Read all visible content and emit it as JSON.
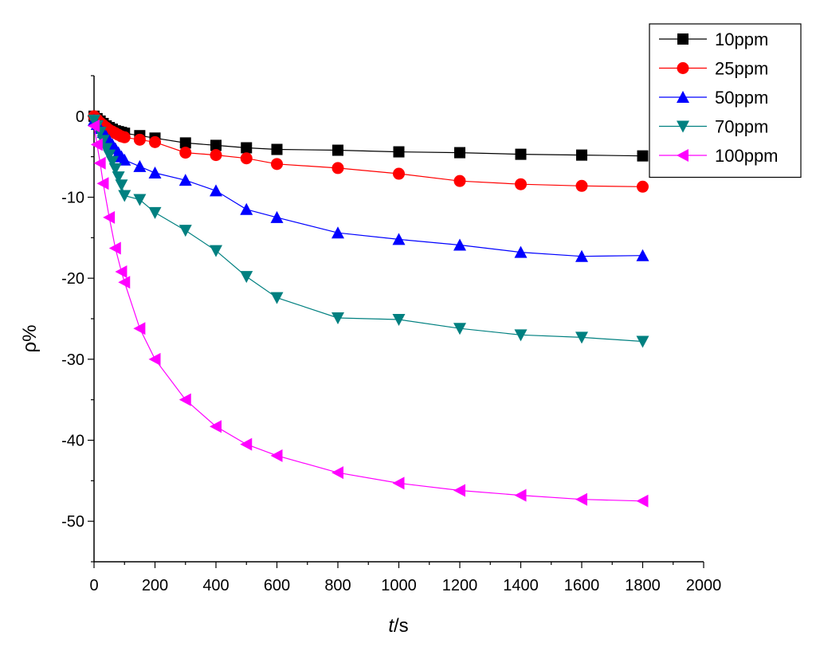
{
  "chart_data": {
    "type": "line",
    "title": "",
    "xlabel_italic": "t",
    "xlabel_rest": "/s",
    "ylabel": "ρ%",
    "xlim": [
      0,
      2000
    ],
    "ylim": [
      -55,
      5
    ],
    "xticks": [
      0,
      200,
      400,
      600,
      800,
      1000,
      1200,
      1400,
      1600,
      1800,
      2000
    ],
    "yticks": [
      0,
      -10,
      -20,
      -30,
      -40,
      -50
    ],
    "grid": false,
    "legend_position": "top-right",
    "series": [
      {
        "name": "10ppm",
        "color": "#000000",
        "marker": "square",
        "x": [
          0,
          10,
          20,
          30,
          40,
          50,
          60,
          70,
          80,
          90,
          100,
          150,
          200,
          300,
          400,
          500,
          600,
          800,
          1000,
          1200,
          1400,
          1600,
          1800
        ],
        "y": [
          0,
          -0.3,
          -0.6,
          -0.9,
          -1.2,
          -1.4,
          -1.6,
          -1.8,
          -1.9,
          -2.0,
          -2.1,
          -2.4,
          -2.7,
          -3.3,
          -3.6,
          -3.9,
          -4.1,
          -4.2,
          -4.4,
          -4.5,
          -4.7,
          -4.8,
          -4.9
        ]
      },
      {
        "name": "25ppm",
        "color": "#ff0000",
        "marker": "circle",
        "x": [
          0,
          10,
          20,
          30,
          40,
          50,
          60,
          70,
          80,
          90,
          100,
          150,
          200,
          300,
          400,
          500,
          600,
          800,
          1000,
          1200,
          1400,
          1600,
          1800
        ],
        "y": [
          0,
          -0.4,
          -0.8,
          -1.1,
          -1.4,
          -1.7,
          -1.9,
          -2.1,
          -2.3,
          -2.5,
          -2.6,
          -2.9,
          -3.2,
          -4.5,
          -4.8,
          -5.2,
          -5.9,
          -6.4,
          -7.1,
          -8.0,
          -8.4,
          -8.6,
          -8.7
        ]
      },
      {
        "name": "50ppm",
        "color": "#0000ff",
        "marker": "triangle-up",
        "x": [
          0,
          10,
          20,
          30,
          40,
          50,
          60,
          70,
          80,
          90,
          100,
          150,
          200,
          300,
          400,
          500,
          600,
          800,
          1000,
          1200,
          1400,
          1600,
          1800
        ],
        "y": [
          -0.5,
          -1.0,
          -1.5,
          -2.0,
          -2.5,
          -3.0,
          -3.5,
          -4.0,
          -4.5,
          -5.0,
          -5.4,
          -6.2,
          -7.0,
          -7.9,
          -9.2,
          -11.5,
          -12.5,
          -14.4,
          -15.2,
          -15.9,
          -16.8,
          -17.3,
          -17.2
        ]
      },
      {
        "name": "70ppm",
        "color": "#008080",
        "marker": "triangle-down",
        "x": [
          0,
          10,
          20,
          30,
          40,
          50,
          60,
          70,
          80,
          90,
          100,
          150,
          200,
          300,
          400,
          500,
          600,
          800,
          1000,
          1200,
          1400,
          1600,
          1800
        ],
        "y": [
          -0.5,
          -1.2,
          -2.0,
          -3.0,
          -4.0,
          -4.8,
          -5.6,
          -6.5,
          -7.5,
          -8.5,
          -9.8,
          -10.3,
          -11.9,
          -14.1,
          -16.6,
          -19.8,
          -22.4,
          -24.9,
          -25.1,
          -26.2,
          -27.0,
          -27.3,
          -27.8
        ]
      },
      {
        "name": "100ppm",
        "color": "#ff00ff",
        "marker": "triangle-left",
        "x": [
          0,
          10,
          20,
          30,
          50,
          70,
          90,
          100,
          150,
          200,
          300,
          400,
          500,
          600,
          800,
          1000,
          1200,
          1400,
          1600,
          1800
        ],
        "y": [
          -1.2,
          -3.5,
          -5.8,
          -8.3,
          -12.5,
          -16.3,
          -19.2,
          -20.5,
          -26.2,
          -30.0,
          -35.0,
          -38.3,
          -40.5,
          -41.9,
          -44.0,
          -45.3,
          -46.2,
          -46.8,
          -47.3,
          -47.5
        ]
      }
    ]
  }
}
